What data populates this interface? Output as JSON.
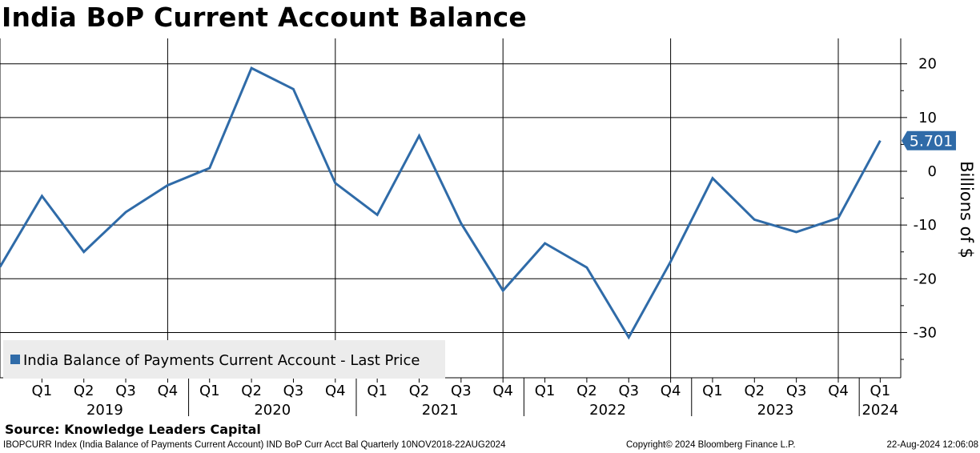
{
  "title": "India BoP Current Account Balance",
  "source": "Source: Knowledge Leaders Capital",
  "footer": {
    "left": "IBOPCURR Index (India Balance of Payments Current Account) IND BoP Curr Acct Bal  Quarterly 10NOV2018-22AUG2024",
    "middle": "Copyright© 2024 Bloomberg Finance L.P.",
    "right": "22-Aug-2024 12:06:08"
  },
  "colors": {
    "series": "#2f6ba8",
    "grid": "#000000",
    "legend_bg": "#ececec",
    "label_bg": "#2f6ba8"
  },
  "chart_data": {
    "type": "line",
    "title": "India BoP Current Account Balance",
    "ylabel": "Billions of $",
    "xlabel": "",
    "ylim": [
      -38,
      22
    ],
    "y_ticks": [
      20,
      10,
      0,
      -10,
      -20,
      -30
    ],
    "y_tick_labels": [
      "20",
      "10",
      "0",
      "-10",
      "-20",
      "-30"
    ],
    "y_axis_side": "right",
    "grid": true,
    "legend_position": "bottom-left",
    "legend": [
      "India Balance of Payments Current Account - Last Price"
    ],
    "x_tick_labels": [
      "Q1",
      "Q2",
      "Q3",
      "Q4",
      "Q1",
      "Q2",
      "Q3",
      "Q4",
      "Q1",
      "Q2",
      "Q3",
      "Q4",
      "Q1",
      "Q2",
      "Q3",
      "Q4",
      "Q1",
      "Q2",
      "Q3",
      "Q4",
      "Q1"
    ],
    "year_labels": [
      "2019",
      "2020",
      "2021",
      "2022",
      "2023",
      "2024"
    ],
    "series": [
      {
        "name": "India Balance of Payments Current Account - Last Price",
        "x": [
          "2018-Q4",
          "2019-Q1",
          "2019-Q2",
          "2019-Q3",
          "2019-Q4",
          "2020-Q1",
          "2020-Q2",
          "2020-Q3",
          "2020-Q4",
          "2021-Q1",
          "2021-Q2",
          "2021-Q3",
          "2021-Q4",
          "2022-Q1",
          "2022-Q2",
          "2022-Q3",
          "2022-Q4",
          "2023-Q1",
          "2023-Q2",
          "2023-Q3",
          "2023-Q4",
          "2024-Q1"
        ],
        "values": [
          -17.8,
          -4.6,
          -15.0,
          -7.6,
          -2.6,
          0.6,
          19.2,
          15.3,
          -2.2,
          -8.1,
          6.6,
          -9.7,
          -22.2,
          -13.4,
          -17.9,
          -30.9,
          -16.8,
          -1.3,
          -9.0,
          -11.3,
          -8.7,
          5.701
        ]
      }
    ],
    "last_value_label": "5.701"
  }
}
